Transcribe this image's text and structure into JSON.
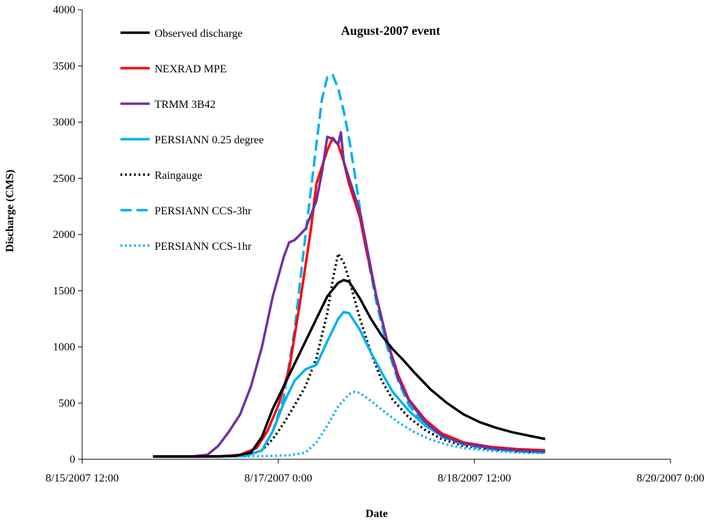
{
  "chart_data": {
    "type": "line",
    "title": "August-2007 event",
    "xlabel": "Date",
    "ylabel": "Discharge (CMS)",
    "ylim": [
      0,
      4000
    ],
    "yticks": [
      0,
      500,
      1000,
      1500,
      2000,
      2500,
      3000,
      3500,
      4000
    ],
    "xlim": [
      0,
      108
    ],
    "x_unit": "hours since 8/15/2007 12:00",
    "xticks": [
      {
        "value": 0,
        "label": "8/15/2007 12:00"
      },
      {
        "value": 36,
        "label": "8/17/2007 0:00"
      },
      {
        "value": 72,
        "label": "8/18/2007 12:00"
      },
      {
        "value": 108,
        "label": "8/20/2007 0:00"
      }
    ],
    "series": [
      {
        "name": "Observed discharge",
        "color": "#000000",
        "style": "solid",
        "points": [
          [
            13,
            25
          ],
          [
            22,
            25
          ],
          [
            28,
            30
          ],
          [
            31,
            60
          ],
          [
            33,
            200
          ],
          [
            35,
            450
          ],
          [
            37,
            650
          ],
          [
            39,
            850
          ],
          [
            41,
            1050
          ],
          [
            43,
            1250
          ],
          [
            45,
            1450
          ],
          [
            47,
            1570
          ],
          [
            48,
            1595
          ],
          [
            49,
            1580
          ],
          [
            51,
            1430
          ],
          [
            53,
            1250
          ],
          [
            55,
            1100
          ],
          [
            57,
            980
          ],
          [
            59,
            880
          ],
          [
            61,
            770
          ],
          [
            64,
            620
          ],
          [
            67,
            500
          ],
          [
            70,
            400
          ],
          [
            73,
            330
          ],
          [
            76,
            280
          ],
          [
            79,
            240
          ],
          [
            82,
            210
          ],
          [
            85,
            180
          ]
        ]
      },
      {
        "name": "NEXRAD MPE",
        "color": "#ff0000",
        "style": "solid",
        "points": [
          [
            13,
            25
          ],
          [
            25,
            25
          ],
          [
            29,
            40
          ],
          [
            32,
            100
          ],
          [
            34,
            250
          ],
          [
            36,
            480
          ],
          [
            38,
            800
          ],
          [
            40,
            1400
          ],
          [
            42,
            2050
          ],
          [
            43,
            2450
          ],
          [
            45,
            2750
          ],
          [
            46,
            2860
          ],
          [
            47,
            2800
          ],
          [
            48,
            2650
          ],
          [
            49,
            2450
          ],
          [
            51,
            2150
          ],
          [
            52,
            1900
          ],
          [
            54,
            1450
          ],
          [
            56,
            1050
          ],
          [
            58,
            750
          ],
          [
            60,
            530
          ],
          [
            63,
            350
          ],
          [
            66,
            230
          ],
          [
            70,
            150
          ],
          [
            75,
            110
          ],
          [
            80,
            90
          ],
          [
            85,
            80
          ]
        ]
      },
      {
        "name": "TRMM 3B42",
        "color": "#7030a0",
        "style": "solid",
        "points": [
          [
            13,
            25
          ],
          [
            20,
            25
          ],
          [
            23,
            40
          ],
          [
            25,
            120
          ],
          [
            27,
            250
          ],
          [
            29,
            400
          ],
          [
            31,
            650
          ],
          [
            33,
            1000
          ],
          [
            35,
            1450
          ],
          [
            37,
            1800
          ],
          [
            38,
            1930
          ],
          [
            39,
            1950
          ],
          [
            41,
            2050
          ],
          [
            43,
            2300
          ],
          [
            44,
            2550
          ],
          [
            45,
            2870
          ],
          [
            46,
            2850
          ],
          [
            47,
            2800
          ],
          [
            47.5,
            2910
          ],
          [
            48,
            2650
          ],
          [
            49,
            2500
          ],
          [
            51,
            2200
          ],
          [
            52,
            1950
          ],
          [
            54,
            1450
          ],
          [
            56,
            1050
          ],
          [
            58,
            720
          ],
          [
            60,
            520
          ],
          [
            63,
            330
          ],
          [
            66,
            210
          ],
          [
            70,
            140
          ],
          [
            75,
            100
          ],
          [
            80,
            80
          ],
          [
            85,
            70
          ]
        ]
      },
      {
        "name": "PERSIANN 0.25 degree",
        "color": "#00b0f0",
        "style": "solid",
        "points": [
          [
            13,
            25
          ],
          [
            25,
            25
          ],
          [
            30,
            30
          ],
          [
            33,
            80
          ],
          [
            35,
            250
          ],
          [
            37,
            500
          ],
          [
            39,
            700
          ],
          [
            41,
            800
          ],
          [
            43,
            840
          ],
          [
            45,
            1050
          ],
          [
            47,
            1250
          ],
          [
            48,
            1310
          ],
          [
            49,
            1300
          ],
          [
            51,
            1150
          ],
          [
            53,
            950
          ],
          [
            55,
            770
          ],
          [
            57,
            600
          ],
          [
            60,
            430
          ],
          [
            63,
            300
          ],
          [
            66,
            210
          ],
          [
            70,
            140
          ],
          [
            75,
            100
          ],
          [
            80,
            80
          ],
          [
            85,
            70
          ]
        ]
      },
      {
        "name": "Raingauge",
        "color": "#000000",
        "style": "dotted",
        "points": [
          [
            13,
            25
          ],
          [
            25,
            25
          ],
          [
            30,
            30
          ],
          [
            33,
            80
          ],
          [
            35,
            180
          ],
          [
            37,
            320
          ],
          [
            39,
            480
          ],
          [
            41,
            650
          ],
          [
            43,
            900
          ],
          [
            45,
            1300
          ],
          [
            46,
            1600
          ],
          [
            47,
            1830
          ],
          [
            48,
            1750
          ],
          [
            49,
            1600
          ],
          [
            51,
            1250
          ],
          [
            53,
            950
          ],
          [
            55,
            700
          ],
          [
            57,
            530
          ],
          [
            60,
            370
          ],
          [
            63,
            260
          ],
          [
            66,
            180
          ],
          [
            70,
            120
          ],
          [
            75,
            90
          ],
          [
            80,
            70
          ],
          [
            85,
            60
          ]
        ]
      },
      {
        "name": "PERSIANN CCS-3hr",
        "color": "#00b0f0",
        "style": "dashed",
        "points": [
          [
            13,
            25
          ],
          [
            25,
            25
          ],
          [
            30,
            30
          ],
          [
            33,
            80
          ],
          [
            35,
            250
          ],
          [
            37,
            550
          ],
          [
            39,
            1150
          ],
          [
            41,
            2000
          ],
          [
            43,
            2800
          ],
          [
            44,
            3200
          ],
          [
            45,
            3400
          ],
          [
            46,
            3420
          ],
          [
            47,
            3300
          ],
          [
            48,
            3100
          ],
          [
            49,
            2850
          ],
          [
            50,
            2550
          ],
          [
            52,
            1900
          ],
          [
            54,
            1400
          ],
          [
            56,
            1000
          ],
          [
            58,
            700
          ],
          [
            60,
            480
          ],
          [
            63,
            310
          ],
          [
            66,
            200
          ],
          [
            70,
            130
          ],
          [
            75,
            90
          ],
          [
            80,
            70
          ],
          [
            85,
            60
          ]
        ]
      },
      {
        "name": "PERSIANN CCS-1hr",
        "color": "#00b0f0",
        "style": "dotted",
        "points": [
          [
            13,
            25
          ],
          [
            25,
            25
          ],
          [
            33,
            28
          ],
          [
            38,
            35
          ],
          [
            41,
            60
          ],
          [
            43,
            150
          ],
          [
            45,
            300
          ],
          [
            47,
            470
          ],
          [
            49,
            580
          ],
          [
            50,
            600
          ],
          [
            51,
            590
          ],
          [
            53,
            520
          ],
          [
            55,
            440
          ],
          [
            58,
            330
          ],
          [
            61,
            240
          ],
          [
            64,
            175
          ],
          [
            67,
            130
          ],
          [
            70,
            100
          ],
          [
            75,
            75
          ],
          [
            80,
            60
          ],
          [
            85,
            55
          ]
        ]
      }
    ]
  }
}
